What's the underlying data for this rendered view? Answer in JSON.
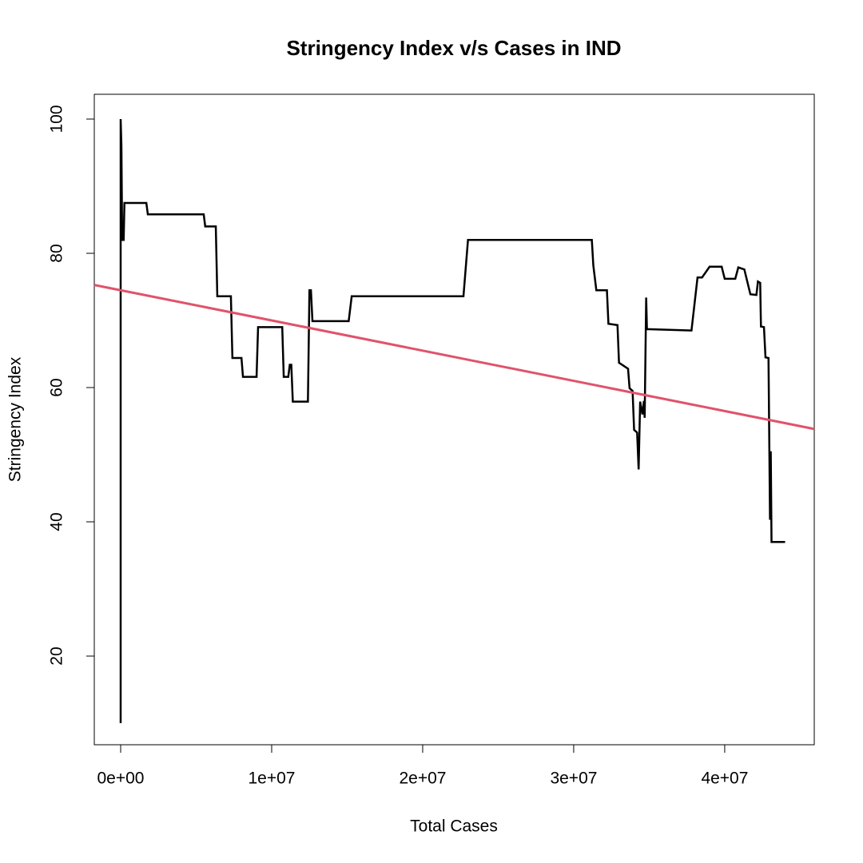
{
  "chart_data": {
    "type": "line",
    "title": "Stringency Index v/s Cases in IND",
    "xlabel": "Total Cases",
    "ylabel": "Stringency Index",
    "xlim": [
      -1746000,
      45930000
    ],
    "ylim": [
      6.79,
      103.69
    ],
    "xticks": [
      {
        "value": 0,
        "label": "0e+00"
      },
      {
        "value": 10000000,
        "label": "1e+07"
      },
      {
        "value": 20000000,
        "label": "2e+07"
      },
      {
        "value": 30000000,
        "label": "3e+07"
      },
      {
        "value": 40000000,
        "label": "4e+07"
      }
    ],
    "yticks": [
      20,
      40,
      60,
      80,
      100
    ],
    "series": [
      {
        "color": "#000000",
        "x": [
          0,
          0,
          50000,
          100000,
          200000,
          250000,
          1700000,
          1800000,
          5500000,
          5600000,
          6300000,
          6400000,
          7300000,
          7400000,
          8000000,
          8100000,
          9000000,
          9100000,
          10700000,
          10800000,
          11100000,
          11200000,
          11300000,
          11400000,
          12400000,
          12450000,
          12500000,
          12600000,
          12700000,
          15100000,
          15300000,
          22700000,
          23000000,
          31200000,
          31300000,
          31500000,
          32200000,
          32300000,
          32900000,
          33000000,
          33600000,
          33700000,
          33900000,
          34000000,
          34200000,
          34300000,
          34400000,
          34550000,
          34650000,
          34700000,
          34800000,
          34850000,
          37800000,
          38200000,
          38500000,
          39000000,
          39800000,
          40000000,
          40700000,
          40900000,
          41300000,
          41700000,
          42100000,
          42200000,
          42350000,
          42400000,
          42600000,
          42700000,
          42900000,
          43000000,
          43050000,
          43100000,
          44000000
        ],
        "values": [
          10,
          100,
          96,
          82,
          82,
          87.5,
          87.5,
          85.8,
          85.8,
          84,
          84,
          73.6,
          73.6,
          64.4,
          64.4,
          61.6,
          61.6,
          69,
          69,
          61.6,
          61.6,
          63.4,
          63.4,
          57.9,
          57.9,
          66,
          74.5,
          74.5,
          69.9,
          69.9,
          73.6,
          73.6,
          82,
          82,
          78.2,
          74.5,
          74.5,
          69.5,
          69.3,
          63.7,
          62.8,
          59.9,
          59.5,
          53.7,
          53.3,
          47.8,
          57.9,
          56,
          58,
          55.5,
          73.4,
          68.7,
          68.5,
          76.4,
          76.4,
          78,
          78,
          76.2,
          76.2,
          77.9,
          77.6,
          73.9,
          73.8,
          75.8,
          75.6,
          69.1,
          69,
          64.5,
          64.4,
          40.3,
          50.5,
          37,
          37
        ]
      }
    ],
    "abline": {
      "intercept": 74.5,
      "slope": -4.5e-07,
      "color": "#df536b"
    }
  }
}
